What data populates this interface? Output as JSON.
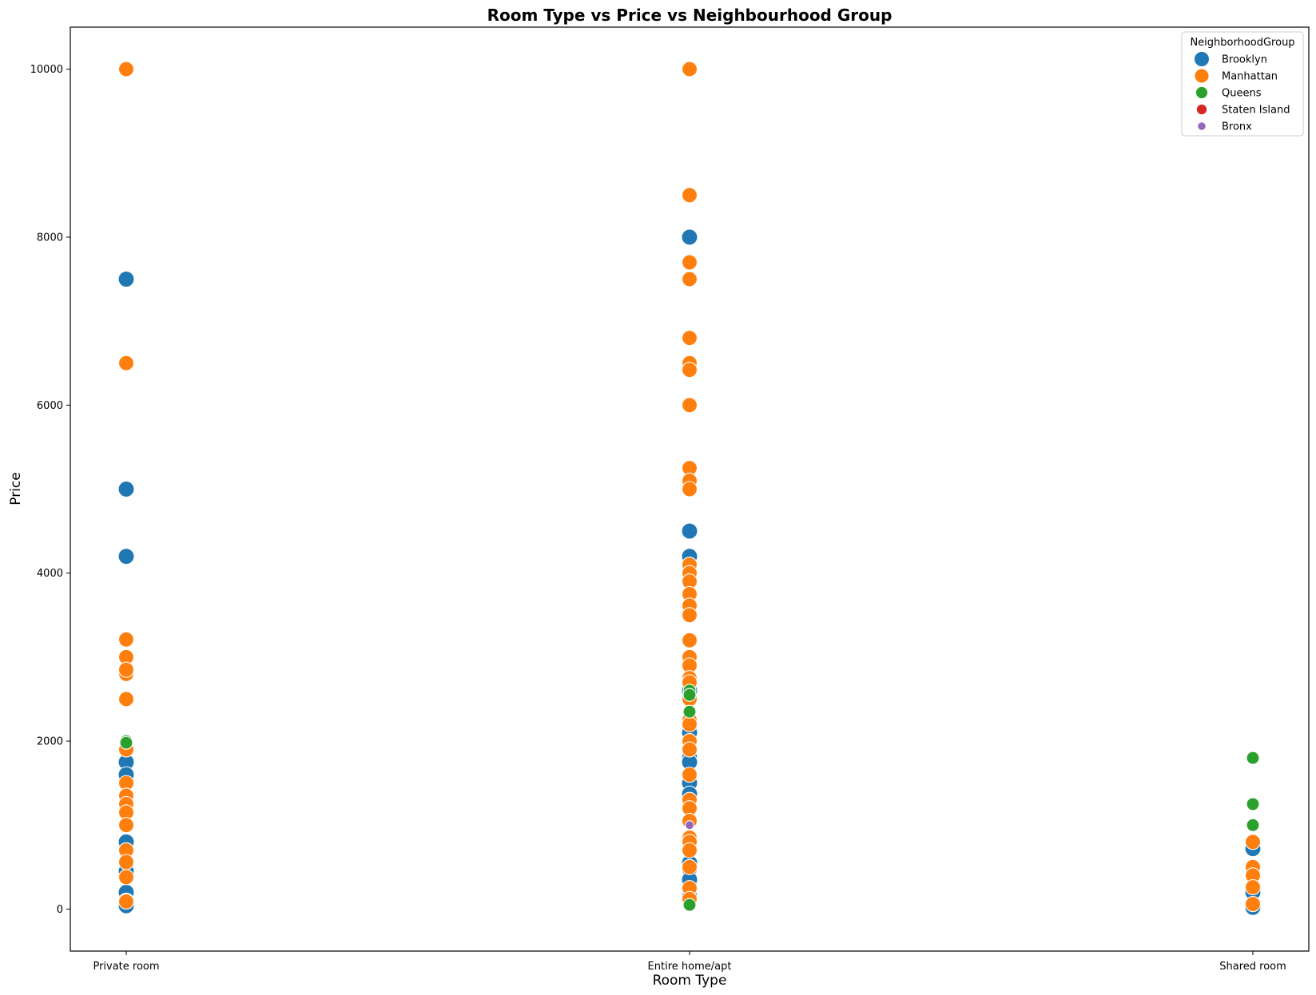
{
  "chart_data": {
    "type": "scatter",
    "title": "Room Type vs Price vs Neighbourhood Group",
    "xlabel": "Room Type",
    "ylabel": "Price",
    "categories": [
      "Private room",
      "Entire home/apt",
      "Shared room"
    ],
    "ylim": [
      -500,
      10500
    ],
    "yticks": [
      0,
      2000,
      4000,
      6000,
      8000,
      10000
    ],
    "grid": false,
    "legend": {
      "title": "NeighborhoodGroup",
      "position": "top-right",
      "entries": [
        "Brooklyn",
        "Manhattan",
        "Queens",
        "Staten Island",
        "Bronx"
      ]
    },
    "series": [
      {
        "name": "Brooklyn",
        "color": "#1f77b4",
        "points": [
          {
            "x": "Private room",
            "y": 7500
          },
          {
            "x": "Private room",
            "y": 5000
          },
          {
            "x": "Private room",
            "y": 4200
          },
          {
            "x": "Private room",
            "y": 1750
          },
          {
            "x": "Private room",
            "y": 1600
          },
          {
            "x": "Private room",
            "y": 800
          },
          {
            "x": "Private room",
            "y": 450
          },
          {
            "x": "Private room",
            "y": 200
          },
          {
            "x": "Private room",
            "y": 40
          },
          {
            "x": "Entire home/apt",
            "y": 8000
          },
          {
            "x": "Entire home/apt",
            "y": 4500
          },
          {
            "x": "Entire home/apt",
            "y": 4200
          },
          {
            "x": "Entire home/apt",
            "y": 2600
          },
          {
            "x": "Entire home/apt",
            "y": 2100
          },
          {
            "x": "Entire home/apt",
            "y": 1800
          },
          {
            "x": "Entire home/apt",
            "y": 1750
          },
          {
            "x": "Entire home/apt",
            "y": 1500
          },
          {
            "x": "Entire home/apt",
            "y": 1370
          },
          {
            "x": "Entire home/apt",
            "y": 550
          },
          {
            "x": "Entire home/apt",
            "y": 480
          },
          {
            "x": "Entire home/apt",
            "y": 350
          },
          {
            "x": "Entire home/apt",
            "y": 180
          },
          {
            "x": "Entire home/apt",
            "y": 150
          },
          {
            "x": "Shared room",
            "y": 720
          },
          {
            "x": "Shared room",
            "y": 200
          },
          {
            "x": "Shared room",
            "y": 20
          }
        ]
      },
      {
        "name": "Manhattan",
        "color": "#ff7f0e",
        "points": [
          {
            "x": "Private room",
            "y": 10000
          },
          {
            "x": "Private room",
            "y": 6500
          },
          {
            "x": "Private room",
            "y": 3210
          },
          {
            "x": "Private room",
            "y": 3000
          },
          {
            "x": "Private room",
            "y": 2800
          },
          {
            "x": "Private room",
            "y": 2850
          },
          {
            "x": "Private room",
            "y": 2500
          },
          {
            "x": "Private room",
            "y": 1900
          },
          {
            "x": "Private room",
            "y": 1500
          },
          {
            "x": "Private room",
            "y": 1350
          },
          {
            "x": "Private room",
            "y": 1250
          },
          {
            "x": "Private room",
            "y": 1150
          },
          {
            "x": "Private room",
            "y": 1000
          },
          {
            "x": "Private room",
            "y": 700
          },
          {
            "x": "Private room",
            "y": 560
          },
          {
            "x": "Private room",
            "y": 380
          },
          {
            "x": "Private room",
            "y": 100
          },
          {
            "x": "Private room",
            "y": 90
          },
          {
            "x": "Entire home/apt",
            "y": 10000
          },
          {
            "x": "Entire home/apt",
            "y": 8500
          },
          {
            "x": "Entire home/apt",
            "y": 7700
          },
          {
            "x": "Entire home/apt",
            "y": 7500
          },
          {
            "x": "Entire home/apt",
            "y": 6800
          },
          {
            "x": "Entire home/apt",
            "y": 6500
          },
          {
            "x": "Entire home/apt",
            "y": 6420
          },
          {
            "x": "Entire home/apt",
            "y": 6000
          },
          {
            "x": "Entire home/apt",
            "y": 5250
          },
          {
            "x": "Entire home/apt",
            "y": 5100
          },
          {
            "x": "Entire home/apt",
            "y": 5000
          },
          {
            "x": "Entire home/apt",
            "y": 4100
          },
          {
            "x": "Entire home/apt",
            "y": 4000
          },
          {
            "x": "Entire home/apt",
            "y": 3900
          },
          {
            "x": "Entire home/apt",
            "y": 3750
          },
          {
            "x": "Entire home/apt",
            "y": 3613
          },
          {
            "x": "Entire home/apt",
            "y": 3500
          },
          {
            "x": "Entire home/apt",
            "y": 3200
          },
          {
            "x": "Entire home/apt",
            "y": 3000
          },
          {
            "x": "Entire home/apt",
            "y": 2900
          },
          {
            "x": "Entire home/apt",
            "y": 2750
          },
          {
            "x": "Entire home/apt",
            "y": 2700
          },
          {
            "x": "Entire home/apt",
            "y": 2500
          },
          {
            "x": "Entire home/apt",
            "y": 2250
          },
          {
            "x": "Entire home/apt",
            "y": 2200
          },
          {
            "x": "Entire home/apt",
            "y": 2000
          },
          {
            "x": "Entire home/apt",
            "y": 1900
          },
          {
            "x": "Entire home/apt",
            "y": 1600
          },
          {
            "x": "Entire home/apt",
            "y": 1300
          },
          {
            "x": "Entire home/apt",
            "y": 1200
          },
          {
            "x": "Entire home/apt",
            "y": 1050
          },
          {
            "x": "Entire home/apt",
            "y": 850
          },
          {
            "x": "Entire home/apt",
            "y": 800
          },
          {
            "x": "Entire home/apt",
            "y": 700
          },
          {
            "x": "Entire home/apt",
            "y": 500
          },
          {
            "x": "Entire home/apt",
            "y": 250
          },
          {
            "x": "Entire home/apt",
            "y": 120
          },
          {
            "x": "Shared room",
            "y": 800
          },
          {
            "x": "Shared room",
            "y": 500
          },
          {
            "x": "Shared room",
            "y": 400
          },
          {
            "x": "Shared room",
            "y": 260
          },
          {
            "x": "Shared room",
            "y": 60
          }
        ]
      },
      {
        "name": "Queens",
        "color": "#2ca02c",
        "points": [
          {
            "x": "Private room",
            "y": 2000
          },
          {
            "x": "Private room",
            "y": 1980
          },
          {
            "x": "Entire home/apt",
            "y": 2600
          },
          {
            "x": "Entire home/apt",
            "y": 2550
          },
          {
            "x": "Entire home/apt",
            "y": 2350
          },
          {
            "x": "Entire home/apt",
            "y": 50
          },
          {
            "x": "Shared room",
            "y": 1800
          },
          {
            "x": "Shared room",
            "y": 1250
          },
          {
            "x": "Shared room",
            "y": 1000
          }
        ]
      },
      {
        "name": "Staten Island",
        "color": "#d62728",
        "points": []
      },
      {
        "name": "Bronx",
        "color": "#9467bd",
        "points": [
          {
            "x": "Entire home/apt",
            "y": 1000
          }
        ]
      }
    ]
  }
}
